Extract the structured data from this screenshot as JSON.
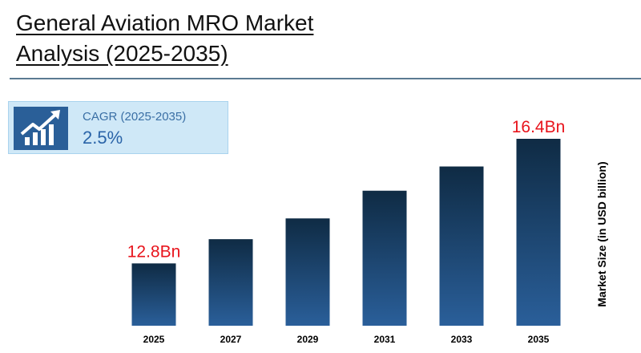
{
  "title_line1": "General Aviation MRO Market",
  "title_line2": "Analysis (2025-2035)",
  "cagr": {
    "label": "CAGR (2025-2035)",
    "value": "2.5%",
    "icon": "chart-growth-icon"
  },
  "colors": {
    "bar_top": "#0f2b44",
    "bar_bottom": "#2a5f9a",
    "annotation": "#e8141c",
    "icon_bg": "#2a5f98"
  },
  "chart_data": {
    "type": "bar",
    "title": "General Aviation MRO Market Analysis (2025-2035)",
    "xlabel": "",
    "ylabel": "Market Size (in USD billion)",
    "categories": [
      "2025",
      "2027",
      "2029",
      "2031",
      "2033",
      "2035"
    ],
    "values": [
      12.8,
      13.5,
      14.1,
      14.9,
      15.6,
      16.4
    ],
    "data_labels": [
      "12.8Bn",
      "",
      "",
      "",
      "",
      "16.4Bn"
    ],
    "ylim": [
      11.0,
      16.4
    ],
    "grid": false,
    "legend": "none"
  }
}
